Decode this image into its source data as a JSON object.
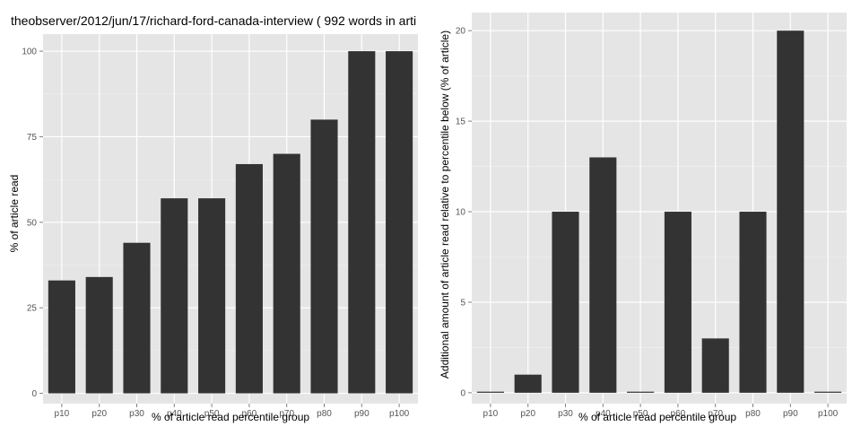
{
  "chart_data": [
    {
      "type": "bar",
      "title": "theobserver/2012/jun/17/richard-ford-canada-interview ( 992 words in arti",
      "xlabel": "% of article read percentile group",
      "ylabel": "% of article read",
      "categories": [
        "p10",
        "p20",
        "p30",
        "p40",
        "p50",
        "p60",
        "p70",
        "p80",
        "p90",
        "p100"
      ],
      "values": [
        33,
        34,
        44,
        57,
        57,
        67,
        70,
        80,
        100,
        100
      ],
      "ylim": [
        -3,
        105
      ],
      "yticks": [
        0,
        25,
        50,
        75,
        100
      ],
      "bar_color": "#333333",
      "panel_background": "#e5e5e5",
      "grid": true
    },
    {
      "type": "bar",
      "title": "",
      "xlabel": "% of article read percentile group",
      "ylabel": "Additional amount of article read relative to percentile below (% of article)",
      "categories": [
        "p10",
        "p20",
        "p30",
        "p40",
        "p50",
        "p60",
        "p70",
        "p80",
        "p90",
        "p100"
      ],
      "values": [
        0,
        1,
        10,
        13,
        0,
        10,
        3,
        10,
        20,
        0
      ],
      "ylim": [
        -0.6,
        21
      ],
      "yticks": [
        0,
        5,
        10,
        15,
        20
      ],
      "bar_color": "#333333",
      "panel_background": "#e5e5e5",
      "grid": true
    }
  ]
}
